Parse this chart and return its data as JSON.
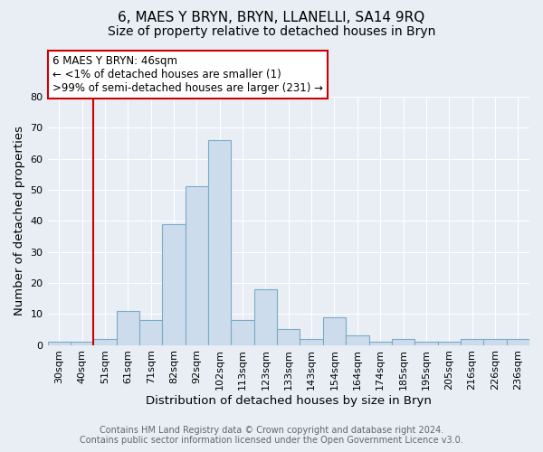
{
  "title": "6, MAES Y BRYN, BRYN, LLANELLI, SA14 9RQ",
  "subtitle": "Size of property relative to detached houses in Bryn",
  "xlabel": "Distribution of detached houses by size in Bryn",
  "ylabel": "Number of detached properties",
  "bar_labels": [
    "30sqm",
    "40sqm",
    "51sqm",
    "61sqm",
    "71sqm",
    "82sqm",
    "92sqm",
    "102sqm",
    "113sqm",
    "123sqm",
    "133sqm",
    "143sqm",
    "154sqm",
    "164sqm",
    "174sqm",
    "185sqm",
    "195sqm",
    "205sqm",
    "216sqm",
    "226sqm",
    "236sqm"
  ],
  "bar_values": [
    1,
    1,
    2,
    11,
    8,
    39,
    51,
    66,
    8,
    18,
    5,
    2,
    9,
    3,
    1,
    2,
    1,
    1,
    2,
    2,
    2
  ],
  "bar_color": "#ccdcec",
  "bar_edge_color": "#7aaac8",
  "vline_x_index": 1,
  "vline_color": "#cc0000",
  "ylim": [
    0,
    80
  ],
  "yticks": [
    0,
    10,
    20,
    30,
    40,
    50,
    60,
    70,
    80
  ],
  "annotation_title": "6 MAES Y BRYN: 46sqm",
  "annotation_line1": "← <1% of detached houses are smaller (1)",
  "annotation_line2": ">99% of semi-detached houses are larger (231) →",
  "annotation_box_color": "#ffffff",
  "annotation_box_edge": "#cc0000",
  "footer1": "Contains HM Land Registry data © Crown copyright and database right 2024.",
  "footer2": "Contains public sector information licensed under the Open Government Licence v3.0.",
  "background_color": "#e8eef4",
  "plot_bg_color": "#e8eef4",
  "grid_color": "#ffffff",
  "title_fontsize": 11,
  "subtitle_fontsize": 10,
  "axis_label_fontsize": 9.5,
  "tick_fontsize": 8,
  "footer_fontsize": 7,
  "annotation_fontsize": 8.5
}
